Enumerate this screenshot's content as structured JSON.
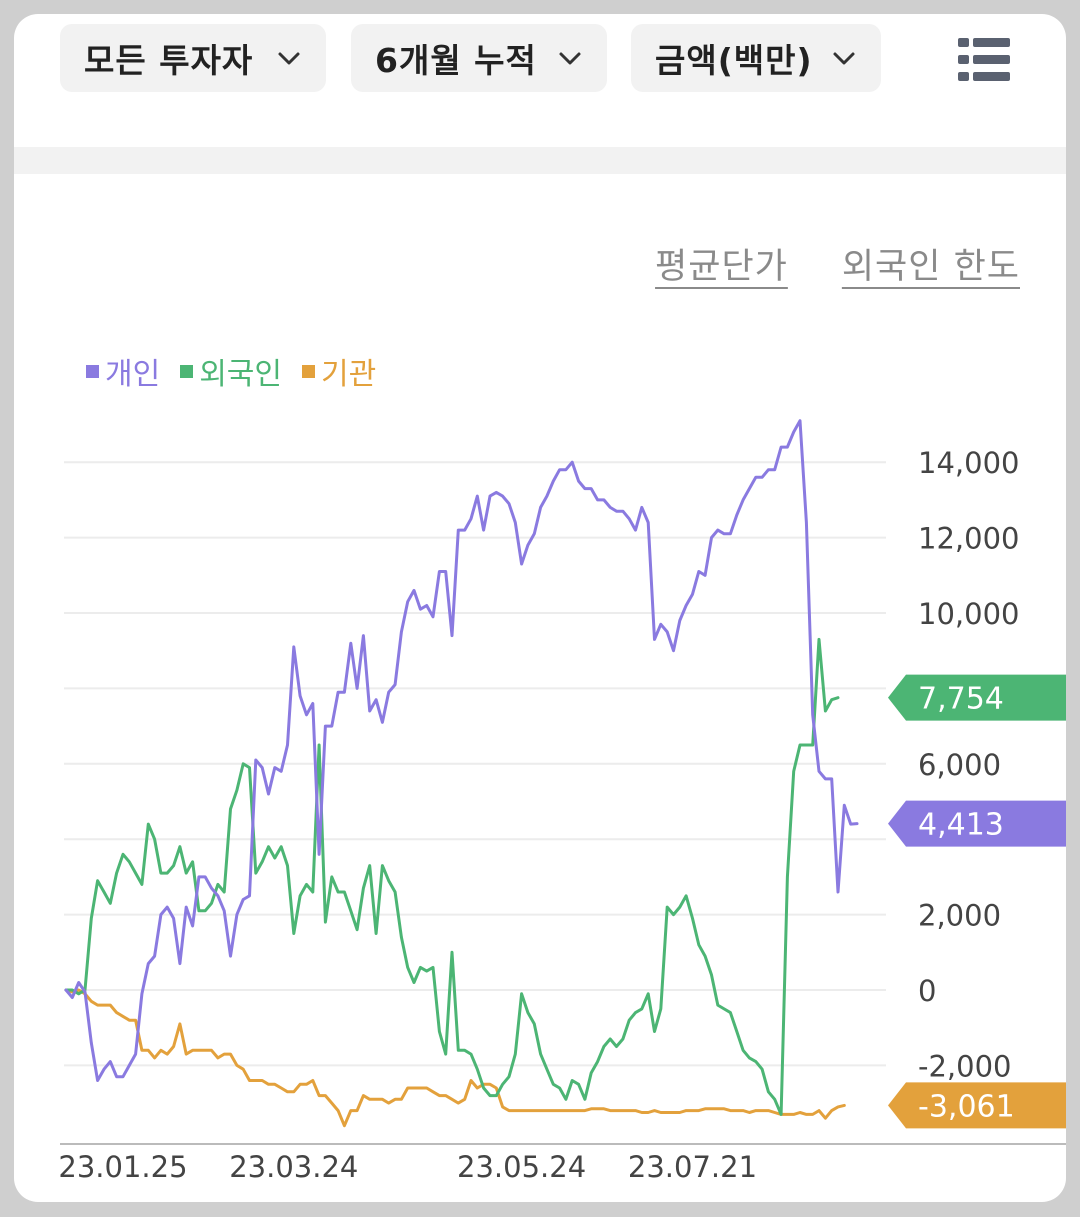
{
  "filters": {
    "investor": "모든 투자자",
    "period": "6개월 누적",
    "unit": "금액(백만)"
  },
  "links": {
    "avg_price": "평균단가",
    "foreign_limit": "외국인 한도"
  },
  "colors": {
    "individual": "#8a7ae0",
    "foreign": "#4cb574",
    "institution": "#e3a13c",
    "grid": "#ececec",
    "axis_text": "#444444"
  },
  "chart_data": {
    "type": "line",
    "title": "",
    "xlabel": "",
    "ylabel": "",
    "ylim": [
      -3800,
      15500
    ],
    "yticks": [
      14000,
      12000,
      10000,
      6000,
      2000,
      0,
      -2000
    ],
    "ytick_labels": [
      "14,000",
      "12,000",
      "10,000",
      "6,000",
      "2,000",
      "0",
      "-2,000"
    ],
    "xtick_labels": [
      "23.01.25",
      "23.03.24",
      "23.05.24",
      "23.07.21"
    ],
    "xtick_index": [
      9,
      36,
      72,
      99
    ],
    "legend_position": "top-left",
    "series": [
      {
        "name": "개인",
        "color": "#8a7ae0",
        "last_label": "4,413",
        "values": [
          0,
          -200,
          200,
          -50,
          -1400,
          -2400,
          -2100,
          -1900,
          -2300,
          -2300,
          -2000,
          -1700,
          -100,
          700,
          900,
          2000,
          2200,
          1900,
          700,
          2200,
          1700,
          3000,
          3000,
          2700,
          2500,
          2100,
          900,
          2000,
          2400,
          2500,
          6100,
          5900,
          5200,
          5900,
          5800,
          6500,
          9100,
          7800,
          7300,
          7600,
          3600,
          7000,
          7000,
          7900,
          7900,
          9200,
          8000,
          9400,
          7400,
          7700,
          7100,
          7900,
          8100,
          9500,
          10300,
          10600,
          10100,
          10200,
          9900,
          11100,
          11100,
          9400,
          12200,
          12200,
          12500,
          13100,
          12200,
          13100,
          13200,
          13100,
          12900,
          12400,
          11300,
          11800,
          12100,
          12800,
          13100,
          13500,
          13800,
          13800,
          14000,
          13500,
          13300,
          13300,
          13000,
          13000,
          12800,
          12700,
          12700,
          12500,
          12200,
          12800,
          12400,
          9300,
          9700,
          9500,
          9000,
          9800,
          10200,
          10500,
          11100,
          11000,
          12000,
          12200,
          12100,
          12100,
          12600,
          13000,
          13300,
          13600,
          13600,
          13800,
          13800,
          14400,
          14400,
          14800,
          15100,
          12400,
          7300,
          5800,
          5600,
          5600,
          2600,
          4900,
          4400,
          4413
        ]
      },
      {
        "name": "외국인",
        "color": "#4cb574",
        "values": [
          0,
          0,
          -100,
          0,
          1900,
          2900,
          2600,
          2300,
          3100,
          3600,
          3400,
          3100,
          2800,
          4400,
          4000,
          3100,
          3100,
          3300,
          3800,
          3100,
          3400,
          2100,
          2100,
          2300,
          2800,
          2600,
          4800,
          5300,
          6000,
          5900,
          3100,
          3400,
          3800,
          3500,
          3800,
          3300,
          1500,
          2500,
          2800,
          2600,
          6500,
          1800,
          3000,
          2600,
          2600,
          2100,
          1600,
          2700,
          3300,
          1500,
          3300,
          2900,
          2600,
          1400,
          600,
          200,
          600,
          500,
          600,
          -1100,
          -1700,
          1000,
          -1600,
          -1600,
          -1700,
          -2100,
          -2600,
          -2800,
          -2800,
          -2500,
          -2300,
          -1700,
          -100,
          -600,
          -900,
          -1700,
          -2100,
          -2500,
          -2600,
          -2900,
          -2400,
          -2500,
          -2900,
          -2200,
          -1900,
          -1500,
          -1300,
          -1500,
          -1300,
          -800,
          -600,
          -500,
          -100,
          -1100,
          -500,
          2200,
          2000,
          2200,
          2500,
          1900,
          1200,
          900,
          400,
          -400,
          -500,
          -600,
          -1100,
          -1600,
          -1800,
          -1900,
          -2100,
          -2700,
          -2900,
          -3300,
          3000,
          5800,
          6500,
          6500,
          6500,
          9300,
          7400,
          7700,
          7754
        ]
      },
      {
        "name": "기관",
        "color": "#e3a13c",
        "last_label": "-3,061",
        "values": [
          0,
          -50,
          0,
          -100,
          -300,
          -400,
          -400,
          -400,
          -600,
          -700,
          -800,
          -800,
          -1600,
          -1600,
          -1800,
          -1600,
          -1700,
          -1500,
          -900,
          -1700,
          -1600,
          -1600,
          -1600,
          -1600,
          -1800,
          -1700,
          -1700,
          -2000,
          -2100,
          -2400,
          -2400,
          -2400,
          -2500,
          -2500,
          -2600,
          -2700,
          -2700,
          -2500,
          -2500,
          -2400,
          -2800,
          -2800,
          -3000,
          -3200,
          -3600,
          -3200,
          -3200,
          -2800,
          -2900,
          -2900,
          -2900,
          -3000,
          -2900,
          -2900,
          -2600,
          -2600,
          -2600,
          -2600,
          -2700,
          -2800,
          -2800,
          -2900,
          -3000,
          -2900,
          -2400,
          -2600,
          -2500,
          -2500,
          -2600,
          -3100,
          -3200,
          -3200,
          -3200,
          -3200,
          -3200,
          -3200,
          -3200,
          -3200,
          -3200,
          -3200,
          -3200,
          -3200,
          -3200,
          -3150,
          -3150,
          -3150,
          -3200,
          -3200,
          -3200,
          -3200,
          -3200,
          -3250,
          -3250,
          -3200,
          -3250,
          -3250,
          -3250,
          -3250,
          -3200,
          -3200,
          -3200,
          -3150,
          -3150,
          -3150,
          -3150,
          -3200,
          -3200,
          -3200,
          -3250,
          -3200,
          -3200,
          -3200,
          -3250,
          -3300,
          -3300,
          -3300,
          -3250,
          -3300,
          -3300,
          -3200,
          -3400,
          -3200,
          -3100,
          -3061
        ]
      }
    ],
    "markers": [
      {
        "series": "외국인",
        "label": "7,754",
        "value": 7754
      },
      {
        "series": "개인",
        "label": "4,413",
        "value": 4413
      },
      {
        "series": "기관",
        "label": "-3,061",
        "value": -3061
      }
    ]
  }
}
